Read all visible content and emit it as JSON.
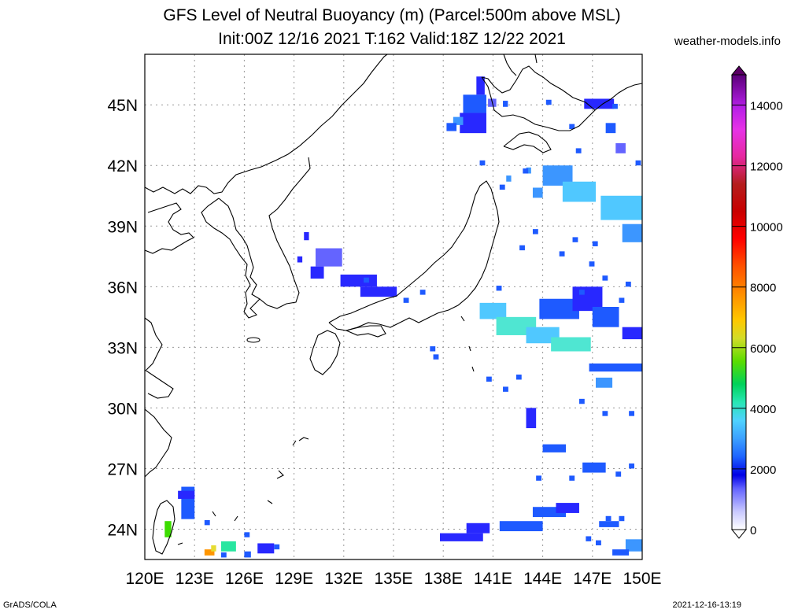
{
  "title_line1": "GFS Level of Neutral Buoyancy (m) (Parcel:500m above MSL)",
  "title_line2": "Init:00Z 12/16 2021 T:162 Valid:18Z 12/22 2021",
  "site": "weather-models.info",
  "footer_left": "GrADS/COLA",
  "footer_right": "2021-12-16-13:19",
  "map": {
    "lon_range": [
      120,
      150
    ],
    "lat_range": [
      22.5,
      47.5
    ],
    "lat_ticks": [
      "45N",
      "42N",
      "39N",
      "36N",
      "33N",
      "30N",
      "27N",
      "24N"
    ],
    "lat_values": [
      45,
      42,
      39,
      36,
      33,
      30,
      27,
      24
    ],
    "lon_ticks": [
      "120E",
      "123E",
      "126E",
      "129E",
      "132E",
      "135E",
      "138E",
      "141E",
      "144E",
      "147E",
      "150E"
    ],
    "lon_values": [
      120,
      123,
      126,
      129,
      132,
      135,
      138,
      141,
      144,
      147,
      150
    ]
  },
  "colorbar": {
    "labels": [
      "14000",
      "12000",
      "10000",
      "8000",
      "6000",
      "4000",
      "2000",
      "0"
    ],
    "values": [
      14000,
      12000,
      10000,
      8000,
      6000,
      4000,
      2000,
      0
    ],
    "max": 15000,
    "colors": [
      "#ffffff",
      "#d8d8ff",
      "#a0a0ff",
      "#6464ff",
      "#2828ff",
      "#0000e6",
      "#1e5aff",
      "#3c96ff",
      "#50c8ff",
      "#4fe6d2",
      "#28e6a0",
      "#00d25a",
      "#3cdc00",
      "#a0e600",
      "#e6dc32",
      "#ffc800",
      "#ff9600",
      "#ff6400",
      "#ff1e00",
      "#d20000",
      "#aa1414",
      "#c81e64",
      "#e632c8",
      "#c81ee6",
      "#a000c8",
      "#78008c",
      "#5a0064"
    ]
  }
}
